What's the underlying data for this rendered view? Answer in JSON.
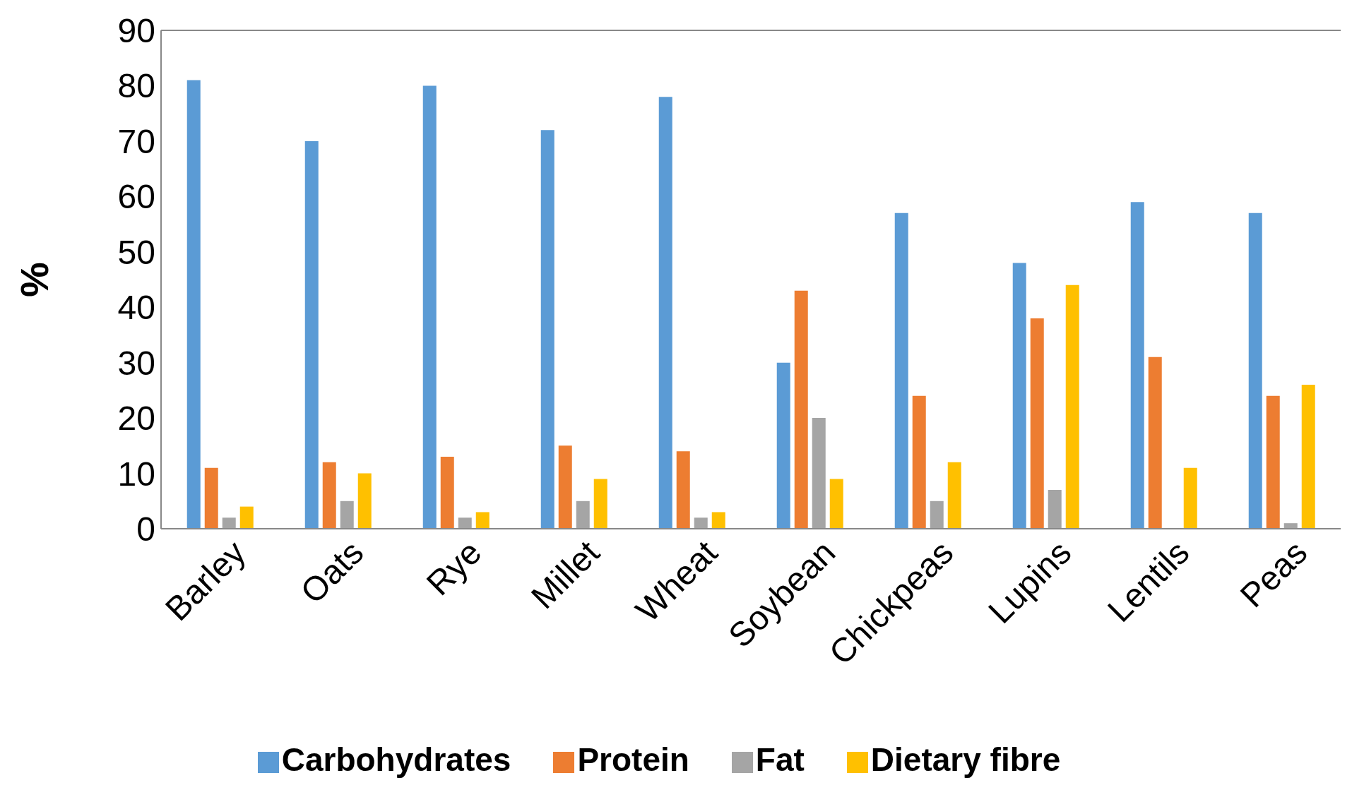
{
  "chart_data": {
    "type": "bar",
    "ylabel": "%",
    "categories": [
      "Barley",
      "Oats",
      "Rye",
      "Millet",
      "Wheat",
      "Soybean",
      "Chickpeas",
      "Lupins",
      "Lentils",
      "Peas"
    ],
    "series": [
      {
        "name": "Carbohydrates",
        "color": "#5b9bd5",
        "values": [
          81,
          70,
          80,
          72,
          78,
          30,
          57,
          48,
          59,
          57
        ]
      },
      {
        "name": "Protein",
        "color": "#ed7d31",
        "values": [
          11,
          12,
          13,
          15,
          14,
          43,
          24,
          38,
          31,
          24
        ]
      },
      {
        "name": "Fat",
        "color": "#a5a5a5",
        "values": [
          2,
          5,
          2,
          5,
          2,
          20,
          5,
          7,
          0,
          1
        ]
      },
      {
        "name": "Dietary fibre",
        "color": "#ffc000",
        "values": [
          4,
          10,
          3,
          9,
          3,
          9,
          12,
          44,
          11,
          26
        ]
      }
    ],
    "ylim": [
      0,
      90
    ],
    "yticks": [
      0,
      10,
      20,
      30,
      40,
      50,
      60,
      70,
      80,
      90
    ],
    "legend": "bottom"
  }
}
